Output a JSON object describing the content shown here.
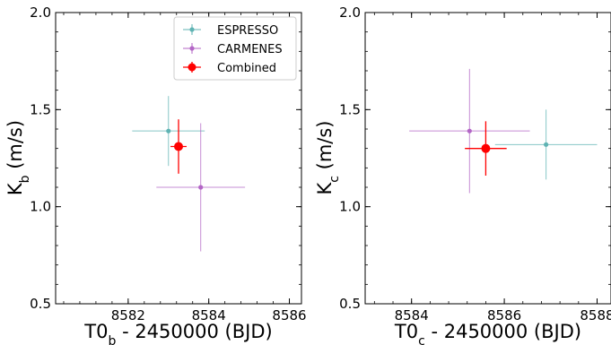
{
  "chart_data": [
    {
      "type": "scatter",
      "xlabel_main": "T0",
      "xlabel_sub": "b",
      "xlabel_rest": " - 2450000 (BJD)",
      "ylabel_main": "K",
      "ylabel_sub": "b",
      "ylabel_rest": " (m/s)",
      "xlim": [
        8580.2,
        8586.3
      ],
      "ylim": [
        0.5,
        2.0
      ],
      "xticks": [
        8582,
        8584,
        8586
      ],
      "yticks": [
        0.5,
        1.0,
        1.5,
        2.0
      ],
      "xtick_labels": [
        "8582",
        "8584",
        "8586"
      ],
      "ytick_labels": [
        "0.5",
        "1.0",
        "1.5",
        "2.0"
      ],
      "legend_position": "top-right",
      "series": [
        {
          "name": "ESPRESSO",
          "color": "#5fb3b3",
          "x": 8583.0,
          "xerr": 0.9,
          "y": 1.39,
          "yerr": 0.18
        },
        {
          "name": "CARMENES",
          "color": "#b366c6",
          "x": 8583.8,
          "xerr": 1.1,
          "y": 1.1,
          "yerr": 0.33
        },
        {
          "name": "Combined",
          "color": "#ff0000",
          "x": 8583.25,
          "xerr": 0.2,
          "y": 1.31,
          "yerr": 0.14
        }
      ]
    },
    {
      "type": "scatter",
      "xlabel_main": "T0",
      "xlabel_sub": "c",
      "xlabel_rest": " - 2450000 (BJD)",
      "ylabel_main": "K",
      "ylabel_sub": "c",
      "ylabel_rest": " (m/s)",
      "xlim": [
        8583.0,
        8588.3
      ],
      "ylim": [
        0.5,
        2.0
      ],
      "xticks": [
        8584,
        8586,
        8588
      ],
      "yticks": [
        0.5,
        1.0,
        1.5,
        2.0
      ],
      "xtick_labels": [
        "8584",
        "8586",
        "8588"
      ],
      "ytick_labels": [
        "0.5",
        "1.0",
        "1.5",
        "2.0"
      ],
      "series": [
        {
          "name": "ESPRESSO",
          "color": "#5fb3b3",
          "x": 8586.9,
          "xerr": 1.1,
          "y": 1.32,
          "yerr": 0.18
        },
        {
          "name": "CARMENES",
          "color": "#b366c6",
          "x": 8585.25,
          "xerr": 1.3,
          "y": 1.39,
          "yerr": 0.32
        },
        {
          "name": "Combined",
          "color": "#ff0000",
          "x": 8585.6,
          "xerr": 0.45,
          "y": 1.3,
          "yerr": 0.14
        }
      ]
    }
  ]
}
